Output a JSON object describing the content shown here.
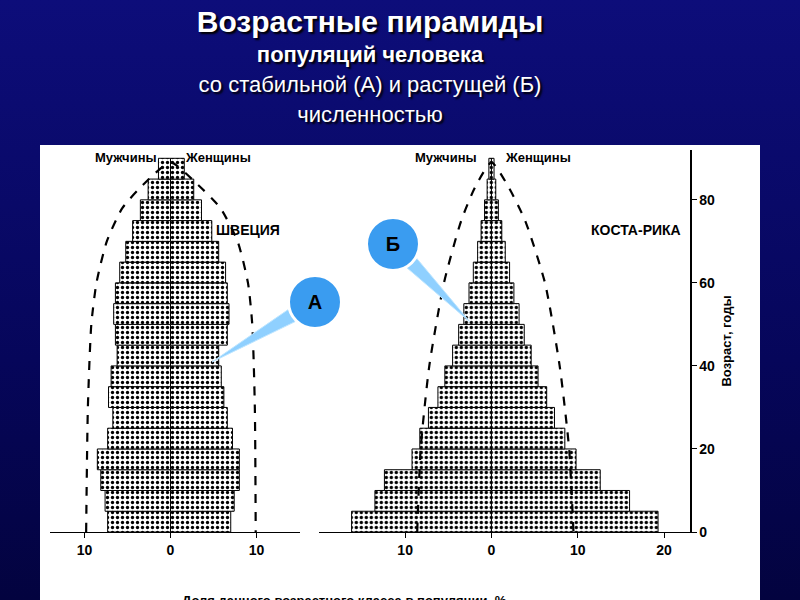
{
  "chart_data": {
    "type": "bar",
    "orientation": "horizontal",
    "title": [
      "Возрастные пирамиды",
      "популяций человека",
      "со стабильной (А) и растущей (Б)",
      "численностью"
    ],
    "xlabel": "Доля данного возрастного класса в популяции, %",
    "ylabel": "Возраст, годы",
    "ylim": [
      0,
      92
    ],
    "yticks": [
      0,
      20,
      40,
      60,
      80
    ],
    "bins": [
      0,
      5,
      10,
      15,
      20,
      25,
      30,
      35,
      40,
      45,
      50,
      55,
      60,
      65,
      70,
      75,
      80,
      85,
      90
    ],
    "legend": false,
    "grid": false,
    "panels": [
      {
        "title": "ШВЕЦИЯ",
        "callout": "А",
        "xlim": [
          -14,
          15
        ],
        "xticks": [
          {
            "value": -10,
            "label": "10"
          },
          0,
          10
        ],
        "series": [
          {
            "name": "Мужчины",
            "color": "#000000",
            "values": [
              -7.3,
              -7.6,
              -8.1,
              -8.5,
              -7.3,
              -6.7,
              -7.2,
              -6.9,
              -6.2,
              -6.4,
              -6.6,
              -6.4,
              -5.9,
              -5.2,
              -4.4,
              -3.5,
              -2.6,
              -1.4
            ]
          },
          {
            "name": "Женщины",
            "color": "#000000",
            "values": [
              7.0,
              7.4,
              8.0,
              8.0,
              7.2,
              6.6,
              6.2,
              5.9,
              5.6,
              6.6,
              6.8,
              6.6,
              6.4,
              5.6,
              4.8,
              3.6,
              2.7,
              1.6
            ]
          },
          {
            "type": "line",
            "line_style": "dashed",
            "color": "#000000",
            "x": [
              -9.8,
              -9.6,
              -9.2,
              -8.6,
              -7.4,
              -5.6,
              -3.0,
              0,
              3.0,
              5.8,
              7.8,
              9.0,
              9.5,
              9.8,
              9.9
            ],
            "y": [
              0,
              30,
              50,
              60,
              70,
              78,
              84,
              89,
              84,
              78,
              70,
              60,
              50,
              30,
              0
            ]
          }
        ]
      },
      {
        "title": "КОСТА-РИКА",
        "callout": "Б",
        "xlim": [
          -20,
          23
        ],
        "xticks": [
          {
            "value": -10,
            "label": "10"
          },
          0,
          10,
          20
        ],
        "series": [
          {
            "name": "Мужчины",
            "color": "#000000",
            "values": [
              -16.2,
              -13.5,
              -12.4,
              -9.2,
              -8.3,
              -7.3,
              -6.2,
              -5.4,
              -4.5,
              -3.8,
              -3.2,
              -2.6,
              -2.1,
              -1.6,
              -1.2,
              -0.8,
              -0.5,
              -0.3
            ]
          },
          {
            "name": "Женщины",
            "color": "#000000",
            "values": [
              19.3,
              16.0,
              12.6,
              9.8,
              8.5,
              7.3,
              6.4,
              5.4,
              4.6,
              3.8,
              3.2,
              2.6,
              2.1,
              1.6,
              1.2,
              0.8,
              0.5,
              0.3
            ]
          },
          {
            "type": "line",
            "line_style": "dashed",
            "color": "#000000",
            "x": [
              -8.6,
              -8.2,
              -7.2,
              -5.5,
              -3.5,
              -1.9,
              0,
              2.0,
              3.9,
              6.2,
              7.9,
              9.0,
              9.5
            ],
            "y": [
              0,
              20,
              40,
              60,
              75,
              83,
              89,
              83,
              75,
              60,
              40,
              20,
              0
            ]
          }
        ]
      }
    ]
  }
}
